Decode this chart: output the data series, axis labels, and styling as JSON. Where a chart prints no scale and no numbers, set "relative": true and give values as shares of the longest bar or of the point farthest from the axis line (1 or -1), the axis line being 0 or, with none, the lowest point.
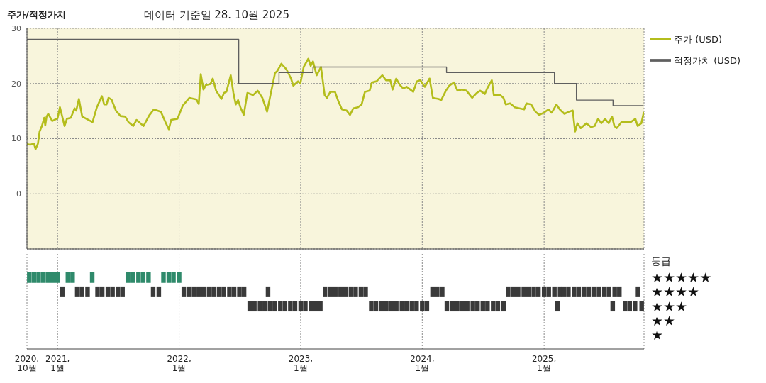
{
  "chart_data": [
    {
      "type": "line",
      "title": "주가/적정가치",
      "subtitle": "데이터 기준일 28. 10월 2025",
      "xlim": [
        "2020-10-01",
        "2025-10-28"
      ],
      "xticks": [
        "2020-10",
        "2021-01",
        "2022-01",
        "2023-01",
        "2024-01",
        "2025-01"
      ],
      "ylim": [
        -10,
        30
      ],
      "yticks": [
        30,
        20,
        10,
        0
      ],
      "grid": true,
      "legend": "top right",
      "tick_labels": "y",
      "series": [
        {
          "name": "주가 (USD)",
          "color": "#b4bd1c",
          "x": [
            "2020-10-01",
            "2020-10-11",
            "2020-10-22",
            "2020-10-27",
            "2020-11-03",
            "2020-11-08",
            "2020-11-15",
            "2020-11-22",
            "2020-11-25",
            "2020-11-29",
            "2020-12-04",
            "2020-12-16",
            "2021-01-01",
            "2021-01-08",
            "2021-01-22",
            "2021-01-29",
            "2021-02-10",
            "2021-02-21",
            "2021-02-26",
            "2021-03-06",
            "2021-03-16",
            "2021-04-10",
            "2021-04-16",
            "2021-04-29",
            "2021-05-14",
            "2021-05-21",
            "2021-05-28",
            "2021-06-03",
            "2021-06-12",
            "2021-06-25",
            "2021-07-09",
            "2021-07-23",
            "2021-08-02",
            "2021-08-16",
            "2021-08-26",
            "2021-09-16",
            "2021-10-03",
            "2021-10-17",
            "2021-11-07",
            "2021-11-21",
            "2021-12-01",
            "2021-12-08",
            "2021-12-27",
            "2022-01-12",
            "2022-02-01",
            "2022-02-22",
            "2022-03-01",
            "2022-03-07",
            "2022-03-15",
            "2022-03-22",
            "2022-04-05",
            "2022-04-12",
            "2022-04-22",
            "2022-05-08",
            "2022-05-16",
            "2022-05-23",
            "2022-06-05",
            "2022-06-13",
            "2022-06-20",
            "2022-06-27",
            "2022-07-04",
            "2022-07-14",
            "2022-07-25",
            "2022-08-11",
            "2022-08-25",
            "2022-09-08",
            "2022-09-22",
            "2022-10-05",
            "2022-10-16",
            "2022-10-23",
            "2022-11-04",
            "2022-11-19",
            "2022-12-03",
            "2022-12-10",
            "2022-12-24",
            "2022-12-31",
            "2023-01-10",
            "2023-01-24",
            "2023-01-31",
            "2023-02-07",
            "2023-02-18",
            "2023-03-03",
            "2023-03-14",
            "2023-03-21",
            "2023-03-31",
            "2023-04-14",
            "2023-04-24",
            "2023-05-05",
            "2023-05-19",
            "2023-05-29",
            "2023-06-08",
            "2023-06-22",
            "2023-07-03",
            "2023-07-13",
            "2023-07-27",
            "2023-08-03",
            "2023-08-17",
            "2023-09-03",
            "2023-09-14",
            "2023-09-27",
            "2023-10-04",
            "2023-10-15",
            "2023-10-25",
            "2023-11-05",
            "2023-11-15",
            "2023-12-05",
            "2023-12-16",
            "2023-12-26",
            "2024-01-09",
            "2024-01-23",
            "2024-02-02",
            "2024-02-19",
            "2024-02-27",
            "2024-03-12",
            "2024-03-22",
            "2024-04-05",
            "2024-04-16",
            "2024-04-29",
            "2024-05-13",
            "2024-05-30",
            "2024-06-13",
            "2024-06-23",
            "2024-07-07",
            "2024-07-14",
            "2024-07-28",
            "2024-08-03",
            "2024-08-22",
            "2024-09-01",
            "2024-09-08",
            "2024-09-21",
            "2024-10-05",
            "2024-10-19",
            "2024-11-02",
            "2024-11-09",
            "2024-11-23",
            "2024-12-06",
            "2024-12-17",
            "2024-12-31",
            "2025-01-14",
            "2025-01-24",
            "2025-02-07",
            "2025-02-17",
            "2025-03-03",
            "2025-03-17",
            "2025-03-28",
            "2025-04-04",
            "2025-04-11",
            "2025-04-21",
            "2025-05-08",
            "2025-05-22",
            "2025-06-02",
            "2025-06-12",
            "2025-06-22",
            "2025-07-03",
            "2025-07-14",
            "2025-07-24",
            "2025-07-31",
            "2025-08-07",
            "2025-08-21",
            "2025-09-04",
            "2025-09-18",
            "2025-10-02",
            "2025-10-09",
            "2025-10-20",
            "2025-10-27"
          ],
          "values": [
            9.0,
            8.9,
            9.1,
            8.1,
            9.1,
            11.3,
            12.3,
            13.8,
            12.4,
            14.0,
            14.5,
            13.2,
            13.7,
            15.7,
            12.3,
            13.6,
            13.8,
            15.5,
            15.1,
            17.2,
            14.0,
            13.2,
            13.0,
            15.7,
            17.7,
            16.2,
            16.2,
            17.4,
            17.1,
            15.1,
            14.1,
            14.0,
            13.0,
            12.3,
            13.4,
            12.3,
            14.2,
            15.3,
            14.9,
            13.0,
            11.7,
            13.4,
            13.6,
            16.0,
            17.4,
            17.1,
            16.3,
            21.7,
            18.9,
            19.7,
            19.9,
            20.9,
            18.7,
            17.2,
            18.3,
            18.5,
            21.5,
            18.3,
            16.2,
            17.0,
            15.7,
            14.3,
            18.3,
            17.9,
            18.7,
            17.4,
            14.9,
            18.7,
            21.9,
            22.3,
            23.6,
            22.6,
            20.9,
            19.6,
            20.4,
            20.0,
            23.0,
            24.5,
            23.2,
            24.0,
            21.5,
            23.0,
            17.9,
            17.4,
            18.5,
            18.5,
            16.8,
            15.3,
            15.1,
            14.3,
            15.5,
            15.7,
            16.2,
            18.5,
            18.7,
            20.2,
            20.4,
            21.5,
            20.6,
            20.6,
            18.9,
            20.9,
            19.8,
            19.1,
            19.4,
            18.5,
            20.4,
            20.6,
            19.4,
            20.9,
            17.4,
            17.2,
            17.0,
            18.7,
            19.6,
            20.2,
            18.7,
            18.9,
            18.7,
            17.4,
            18.3,
            18.7,
            18.1,
            19.1,
            20.6,
            17.9,
            17.9,
            17.4,
            16.2,
            16.4,
            15.7,
            15.5,
            15.3,
            16.4,
            16.2,
            14.9,
            14.3,
            14.7,
            15.3,
            14.7,
            16.2,
            15.3,
            14.5,
            14.9,
            15.1,
            11.3,
            12.8,
            11.9,
            12.8,
            12.1,
            12.3,
            13.6,
            12.8,
            13.6,
            12.8,
            14.0,
            12.3,
            11.9,
            13.0,
            13.0,
            13.0,
            13.6,
            12.3,
            12.8,
            14.7
          ]
        },
        {
          "name": "적정가치 (USD)",
          "type": "step",
          "color": "#5f5f5f",
          "x": [
            "2020-10-01",
            "2022-06-29",
            "2022-10-28",
            "2023-02-07",
            "2024-03-14",
            "2025-02-01",
            "2025-04-08",
            "2025-07-27",
            "2025-10-25"
          ],
          "values": [
            28,
            20,
            22,
            23,
            22,
            20,
            17,
            16,
            16
          ]
        }
      ]
    },
    {
      "type": "scatter",
      "relative": true,
      "ylabel": "등급",
      "xlim": [
        "2020-10-01",
        "2025-10-28"
      ],
      "xticks": [
        {
          "value": "2020-10",
          "label": "2020,10월"
        },
        {
          "value": "2021-01",
          "label": "2021,1월"
        },
        {
          "value": "2022-01",
          "label": "2022,1월"
        },
        {
          "value": "2023-01",
          "label": "2023,1월"
        },
        {
          "value": "2024-01",
          "label": "2024,1월"
        },
        {
          "value": "2025-01",
          "label": "2025,1월"
        }
      ],
      "grid": "x",
      "annotations": [
        "★★★★★",
        "★★★★",
        "★★★",
        "★★",
        "★"
      ],
      "series": [
        {
          "color": "#2f8a6b",
          "x": [
            "2020-10-08",
            "2020-10-22",
            "2020-11-05",
            "2020-11-19",
            "2020-12-03",
            "2020-12-17",
            "2021-01-01",
            "2021-02-01",
            "2021-02-15",
            "2021-04-15",
            "2021-08-01",
            "2021-08-15",
            "2021-09-01",
            "2021-09-15",
            "2021-10-01",
            "2021-11-15",
            "2021-12-01",
            "2021-12-15",
            "2022-01-01"
          ],
          "values": [
            1,
            1,
            1,
            1,
            1,
            1,
            1,
            1,
            1,
            1,
            1,
            1,
            1,
            1,
            1,
            1,
            1,
            1,
            1
          ]
        },
        {
          "color": "#3a3a3a",
          "x": [
            "2021-01-15",
            "2021-03-01",
            "2021-03-15",
            "2021-04-01",
            "2021-05-01",
            "2021-05-15",
            "2021-06-01",
            "2021-06-15",
            "2021-07-01",
            "2021-07-15",
            "2021-10-15",
            "2021-11-01",
            "2022-01-15",
            "2022-02-01",
            "2022-02-15",
            "2022-03-01",
            "2022-03-15",
            "2022-04-01",
            "2022-04-15",
            "2022-05-01",
            "2022-05-15",
            "2022-06-01",
            "2022-06-15",
            "2022-07-01",
            "2022-07-15",
            "2022-08-01",
            "2022-08-15",
            "2022-09-01",
            "2022-09-15",
            "2022-09-25",
            "2022-10-01",
            "2022-10-15",
            "2022-11-01",
            "2022-11-15",
            "2022-12-01",
            "2022-12-15",
            "2023-01-01",
            "2023-01-15",
            "2023-02-01",
            "2023-02-15",
            "2023-03-01",
            "2023-03-15",
            "2023-04-01",
            "2023-04-15",
            "2023-05-01",
            "2023-05-15",
            "2023-06-01",
            "2023-06-15",
            "2023-07-01",
            "2023-07-15",
            "2023-08-01",
            "2023-08-15",
            "2023-09-01",
            "2023-09-15",
            "2023-10-01",
            "2023-10-15",
            "2023-11-01",
            "2023-11-15",
            "2023-12-01",
            "2023-12-15",
            "2024-01-01",
            "2024-01-15",
            "2024-02-01",
            "2024-02-15",
            "2024-03-01",
            "2024-03-15",
            "2024-04-01",
            "2024-04-15",
            "2024-05-01",
            "2024-05-15",
            "2024-06-01",
            "2024-06-15",
            "2024-07-01",
            "2024-07-15",
            "2024-08-01",
            "2024-08-15",
            "2024-09-01",
            "2024-09-15",
            "2024-10-01",
            "2024-10-15",
            "2024-11-01",
            "2024-11-15",
            "2024-12-01",
            "2024-12-15",
            "2025-01-01",
            "2025-01-15",
            "2025-02-01",
            "2025-02-10",
            "2025-02-18",
            "2025-03-01",
            "2025-03-15",
            "2025-04-01",
            "2025-04-15",
            "2025-05-01",
            "2025-05-15",
            "2025-06-01",
            "2025-06-15",
            "2025-07-01",
            "2025-07-15",
            "2025-07-26",
            "2025-08-01",
            "2025-08-15",
            "2025-09-01",
            "2025-09-15",
            "2025-10-01",
            "2025-10-10",
            "2025-10-21"
          ],
          "values": [
            0.8,
            0.8,
            0.8,
            0.8,
            0.8,
            0.8,
            0.8,
            0.8,
            0.8,
            0.8,
            0.8,
            0.8,
            0.8,
            0.8,
            0.8,
            0.8,
            0.8,
            0.8,
            0.8,
            0.8,
            0.8,
            0.8,
            0.8,
            0.8,
            0.8,
            0.6,
            0.6,
            0.6,
            0.6,
            0.8,
            0.6,
            0.6,
            0.6,
            0.6,
            0.6,
            0.6,
            0.6,
            0.6,
            0.6,
            0.6,
            0.6,
            0.8,
            0.8,
            0.8,
            0.8,
            0.8,
            0.8,
            0.8,
            0.8,
            0.8,
            0.6,
            0.6,
            0.6,
            0.6,
            0.6,
            0.6,
            0.6,
            0.6,
            0.6,
            0.6,
            0.6,
            0.6,
            0.8,
            0.8,
            0.8,
            0.6,
            0.6,
            0.6,
            0.6,
            0.6,
            0.6,
            0.6,
            0.6,
            0.6,
            0.6,
            0.6,
            0.6,
            0.8,
            0.8,
            0.8,
            0.8,
            0.8,
            0.8,
            0.8,
            0.8,
            0.8,
            0.8,
            0.6,
            0.8,
            0.8,
            0.8,
            0.8,
            0.8,
            0.8,
            0.8,
            0.8,
            0.8,
            0.8,
            0.8,
            0.6,
            0.8,
            0.8,
            0.6,
            0.6,
            0.6,
            0.8,
            0.6
          ]
        }
      ]
    }
  ]
}
